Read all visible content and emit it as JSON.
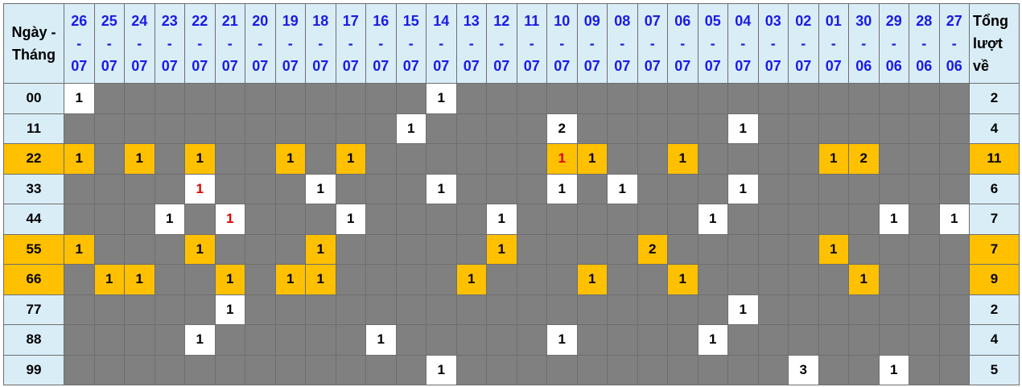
{
  "header": {
    "first": "Ngày - Tháng",
    "total": "Tổng lượt về",
    "dates": [
      [
        "26",
        "07"
      ],
      [
        "25",
        "07"
      ],
      [
        "24",
        "07"
      ],
      [
        "23",
        "07"
      ],
      [
        "22",
        "07"
      ],
      [
        "21",
        "07"
      ],
      [
        "20",
        "07"
      ],
      [
        "19",
        "07"
      ],
      [
        "18",
        "07"
      ],
      [
        "17",
        "07"
      ],
      [
        "16",
        "07"
      ],
      [
        "15",
        "07"
      ],
      [
        "14",
        "07"
      ],
      [
        "13",
        "07"
      ],
      [
        "12",
        "07"
      ],
      [
        "11",
        "07"
      ],
      [
        "10",
        "07"
      ],
      [
        "09",
        "07"
      ],
      [
        "08",
        "07"
      ],
      [
        "07",
        "07"
      ],
      [
        "06",
        "07"
      ],
      [
        "05",
        "07"
      ],
      [
        "04",
        "07"
      ],
      [
        "03",
        "07"
      ],
      [
        "02",
        "07"
      ],
      [
        "01",
        "07"
      ],
      [
        "30",
        "06"
      ],
      [
        "29",
        "06"
      ],
      [
        "28",
        "06"
      ],
      [
        "27",
        "06"
      ]
    ]
  },
  "colors": {
    "header_bg": "#d9edf7",
    "date_text": "#1a1ae6",
    "empty_cell": "#808080",
    "hit_cell": "#ffffff",
    "highlight": "#ffc000",
    "red_text": "#e00000"
  },
  "rows": [
    {
      "label": "00",
      "highlight": false,
      "total": "2",
      "cells": {
        "0": "1",
        "12": "1"
      },
      "red": []
    },
    {
      "label": "11",
      "highlight": false,
      "total": "4",
      "cells": {
        "11": "1",
        "16": "2",
        "22": "1"
      },
      "red": []
    },
    {
      "label": "22",
      "highlight": true,
      "total": "11",
      "cells": {
        "0": "1",
        "2": "1",
        "4": "1",
        "7": "1",
        "9": "1",
        "16": "1",
        "17": "1",
        "20": "1",
        "25": "1",
        "26": "2"
      },
      "red": [
        16
      ]
    },
    {
      "label": "33",
      "highlight": false,
      "total": "6",
      "cells": {
        "4": "1",
        "8": "1",
        "12": "1",
        "16": "1",
        "18": "1",
        "22": "1"
      },
      "red": [
        4
      ]
    },
    {
      "label": "44",
      "highlight": false,
      "total": "7",
      "cells": {
        "3": "1",
        "5": "1",
        "9": "1",
        "14": "1",
        "21": "1",
        "27": "1",
        "29": "1"
      },
      "red": [
        5
      ]
    },
    {
      "label": "55",
      "highlight": true,
      "total": "7",
      "cells": {
        "0": "1",
        "4": "1",
        "8": "1",
        "14": "1",
        "19": "2",
        "25": "1"
      },
      "red": []
    },
    {
      "label": "66",
      "highlight": true,
      "total": "9",
      "cells": {
        "1": "1",
        "2": "1",
        "5": "1",
        "7": "1",
        "8": "1",
        "13": "1",
        "17": "1",
        "20": "1",
        "26": "1"
      },
      "red": []
    },
    {
      "label": "77",
      "highlight": false,
      "total": "2",
      "cells": {
        "5": "1",
        "22": "1"
      },
      "red": []
    },
    {
      "label": "88",
      "highlight": false,
      "total": "4",
      "cells": {
        "4": "1",
        "10": "1",
        "16": "1",
        "21": "1"
      },
      "red": []
    },
    {
      "label": "99",
      "highlight": false,
      "total": "5",
      "cells": {
        "12": "1",
        "24": "3",
        "27": "1"
      },
      "red": []
    }
  ]
}
